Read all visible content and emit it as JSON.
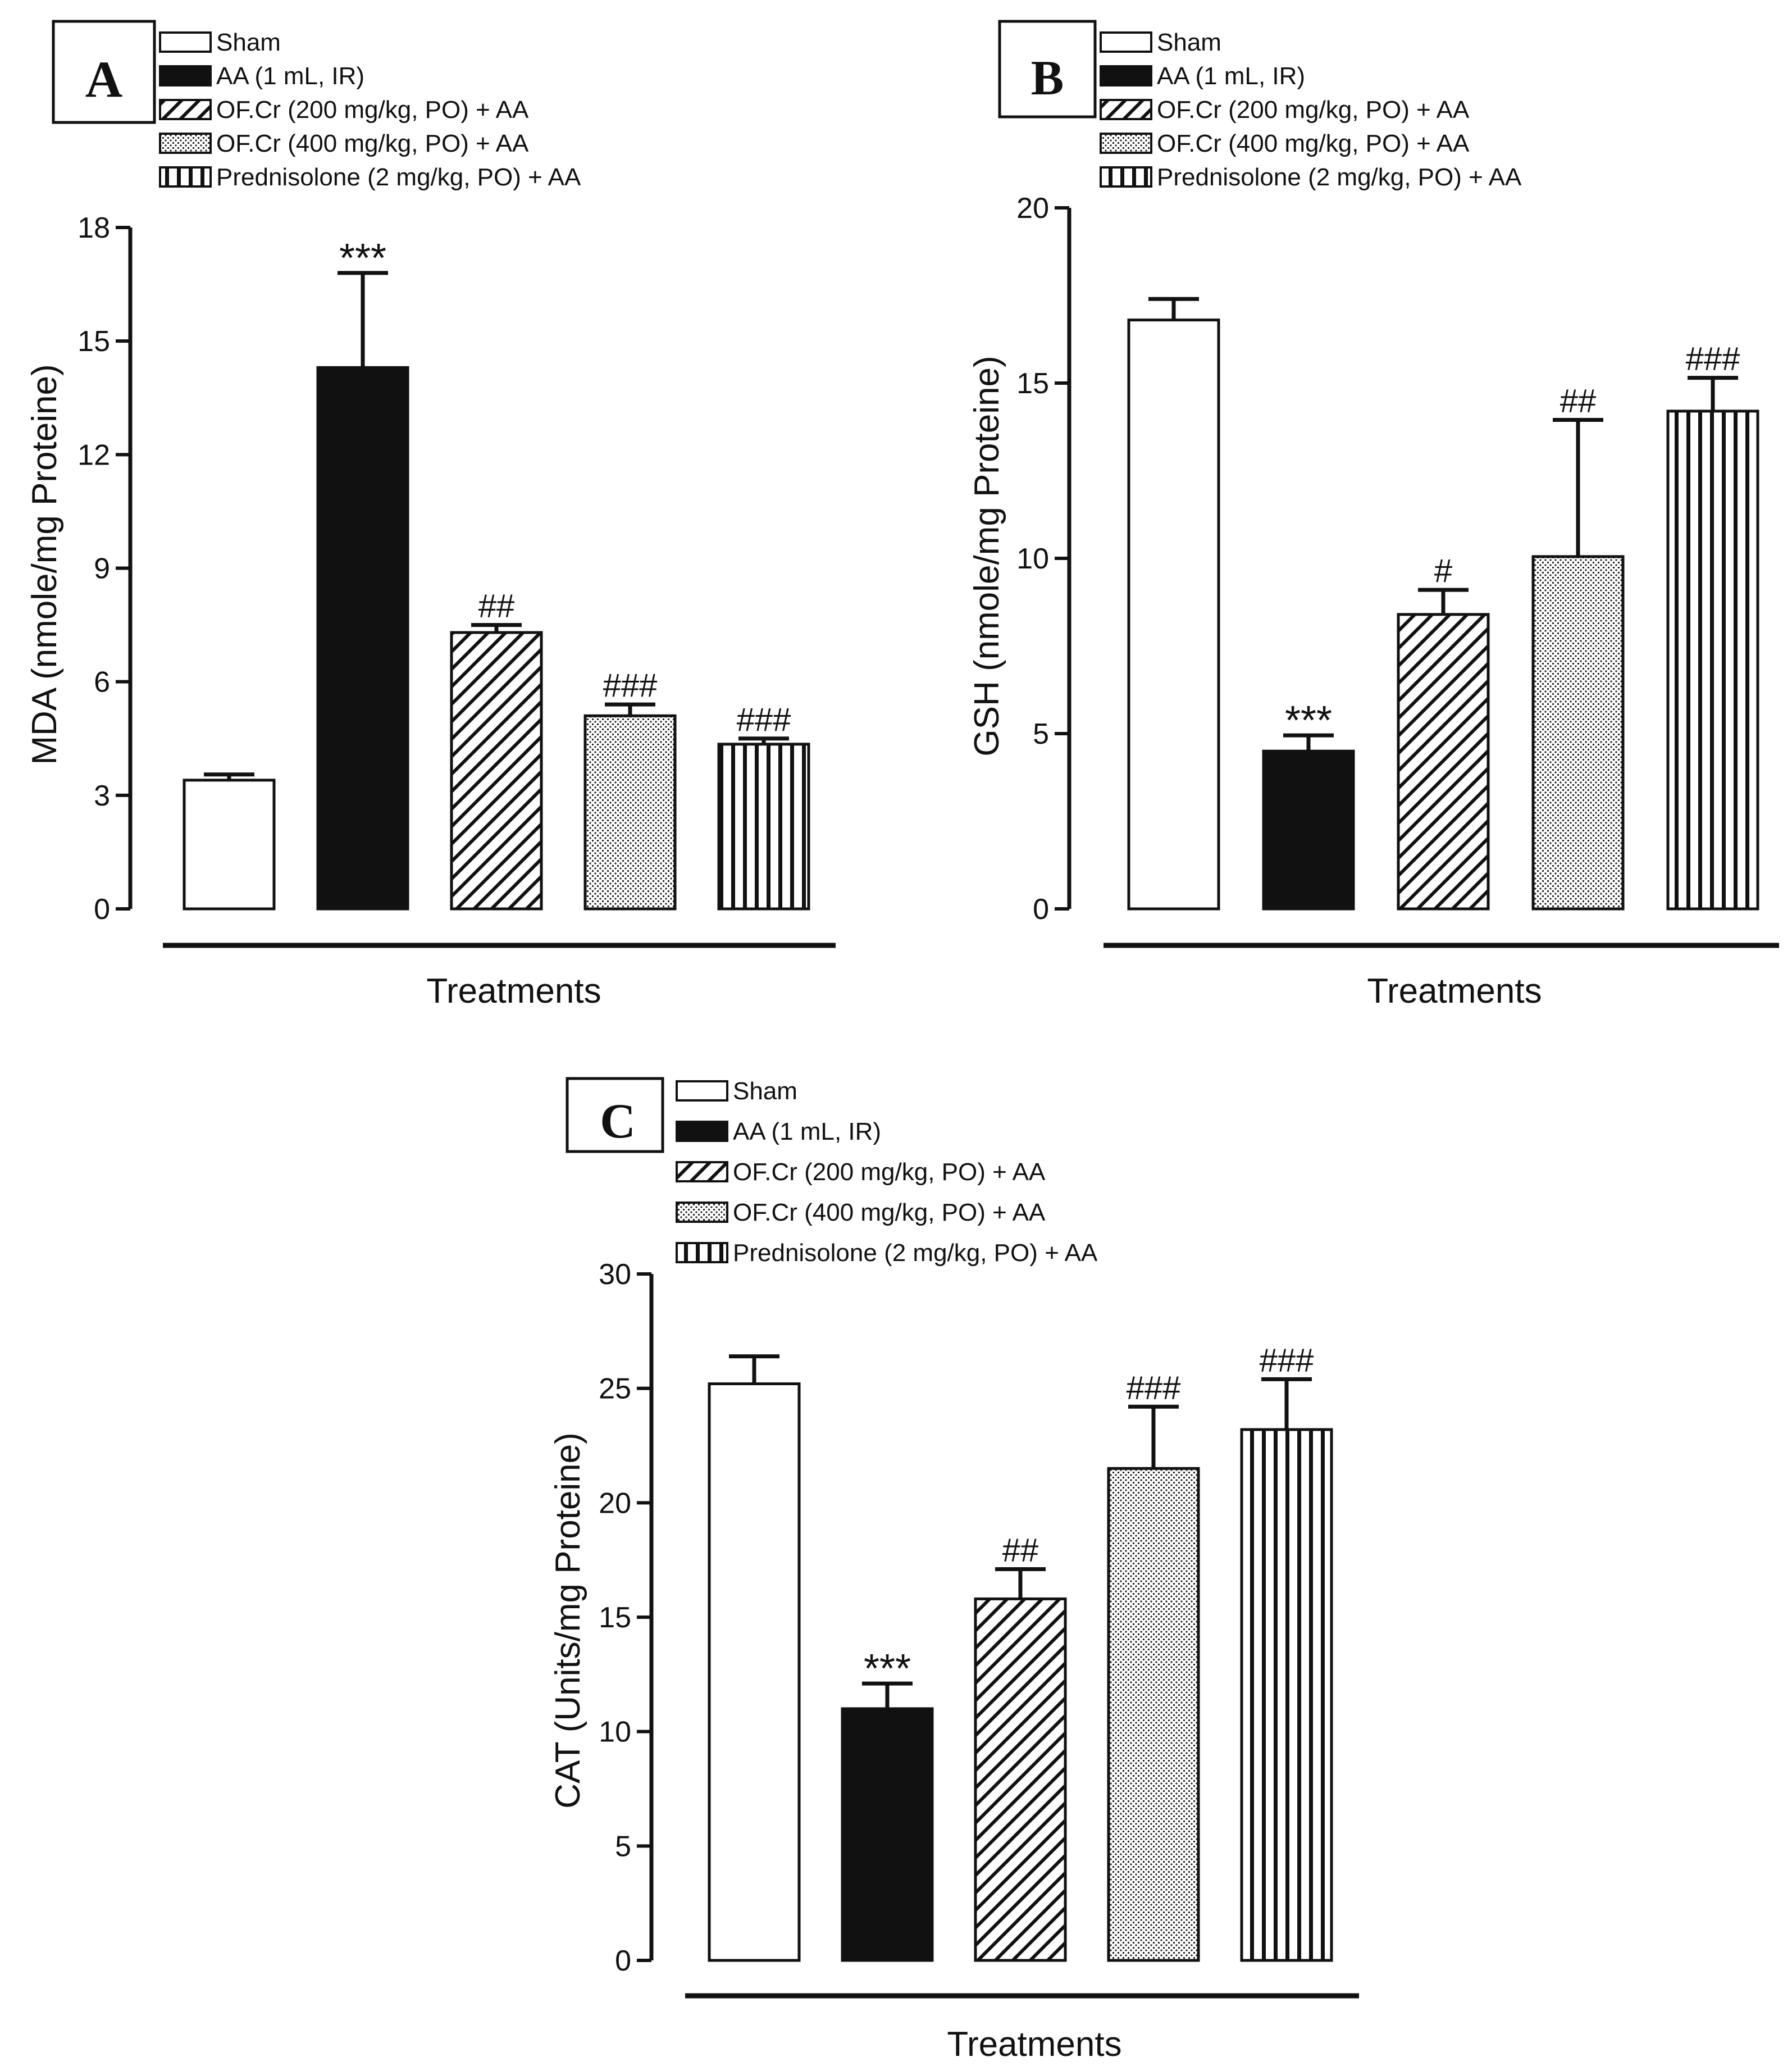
{
  "legend": [
    {
      "label": "Sham",
      "pattern": "white"
    },
    {
      "label": "AA (1 mL, IR)",
      "pattern": "black"
    },
    {
      "label": "OF.Cr (200 mg/kg, PO) + AA",
      "pattern": "hatch"
    },
    {
      "label": "OF.Cr (400 mg/kg, PO) + AA",
      "pattern": "dots"
    },
    {
      "label": "Prednisolone (2 mg/kg, PO) + AA",
      "pattern": "vstripes"
    }
  ],
  "chart_data": [
    {
      "panel": "A",
      "type": "bar",
      "ylabel": "MDA (nmole/mg Proteine)",
      "xlabel": "Treatments",
      "ylim": [
        0,
        18
      ],
      "yticks": [
        "0",
        "3",
        "6",
        "9",
        "12",
        "15",
        "18"
      ],
      "categories": [
        "Sham",
        "AA (1 mL, IR)",
        "OF.Cr (200 mg/kg, PO) + AA",
        "OF.Cr (400 mg/kg, PO) + AA",
        "Prednisolone (2 mg/kg, PO) + AA"
      ],
      "values": [
        3.4,
        14.3,
        7.3,
        5.1,
        4.35
      ],
      "errors": [
        0.15,
        2.5,
        0.2,
        0.3,
        0.15
      ],
      "annotations": [
        "",
        "***",
        "##",
        "###",
        "###"
      ]
    },
    {
      "panel": "B",
      "type": "bar",
      "ylabel": "GSH (nmole/mg Proteine)",
      "xlabel": "Treatments",
      "ylim": [
        0,
        20
      ],
      "yticks": [
        "0",
        "5",
        "10",
        "15",
        "20"
      ],
      "categories": [
        "Sham",
        "AA (1 mL, IR)",
        "OF.Cr (200 mg/kg, PO) + AA",
        "OF.Cr (400 mg/kg, PO) + AA",
        "Prednisolone (2 mg/kg, PO) + AA"
      ],
      "values": [
        16.8,
        4.5,
        8.4,
        10.05,
        14.2
      ],
      "errors": [
        0.6,
        0.45,
        0.7,
        3.9,
        0.95
      ],
      "annotations": [
        "",
        "***",
        "#",
        "##",
        "###"
      ]
    },
    {
      "panel": "C",
      "type": "bar",
      "ylabel": "CAT (Units/mg Proteine)",
      "xlabel": "Treatments",
      "ylim": [
        0,
        30
      ],
      "yticks": [
        "0",
        "5",
        "10",
        "15",
        "20",
        "25",
        "30"
      ],
      "categories": [
        "Sham",
        "AA (1 mL, IR)",
        "OF.Cr (200 mg/kg, PO) + AA",
        "OF.Cr (400 mg/kg, PO) + AA",
        "Prednisolone (2 mg/kg, PO) + AA"
      ],
      "values": [
        25.2,
        11.0,
        15.8,
        21.5,
        23.2
      ],
      "errors": [
        1.2,
        1.1,
        1.3,
        2.7,
        2.2
      ],
      "annotations": [
        "",
        "***",
        "##",
        "###",
        "###"
      ]
    }
  ]
}
